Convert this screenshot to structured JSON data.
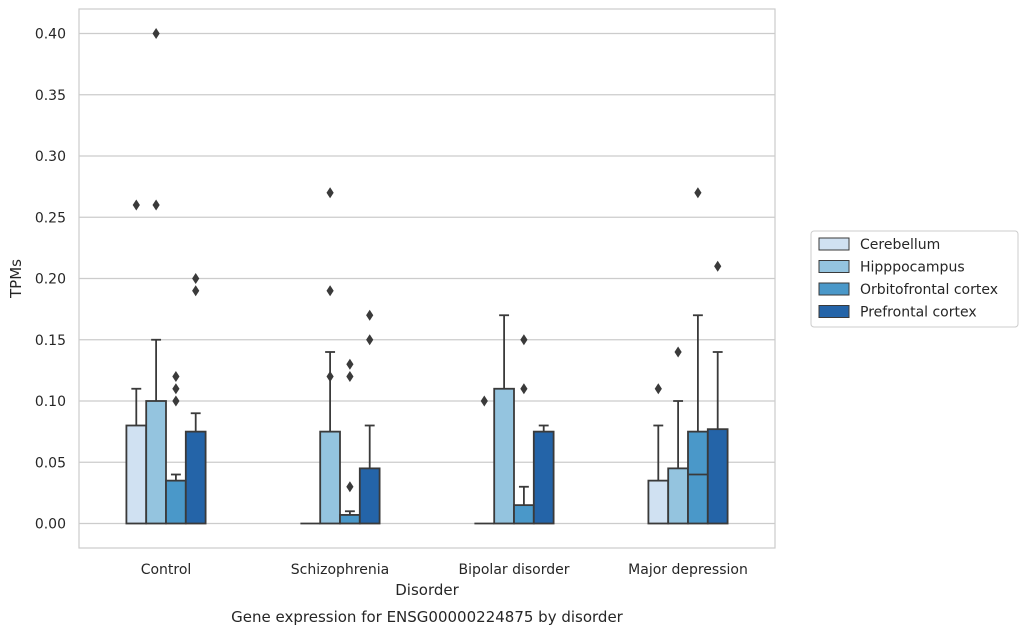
{
  "chart_data": {
    "type": "bar",
    "title": "",
    "xlabel": "Disorder",
    "ylabel": "TPMs",
    "caption": "Gene expression for ENSG00000224875 by disorder",
    "ylim": [
      -0.02,
      0.42
    ],
    "yticks": [
      "0.00",
      "0.05",
      "0.10",
      "0.15",
      "0.20",
      "0.25",
      "0.30",
      "0.35",
      "0.40"
    ],
    "grid": "horizontal",
    "legend_position": "right",
    "categories": [
      "Control",
      "Schizophrenia",
      "Bipolar disorder",
      "Major depression"
    ],
    "series": [
      {
        "name": "Cerebellum",
        "color": "#d0e1f2",
        "values": [
          0.08,
          0.0,
          0.0,
          0.035
        ],
        "whisker_high": [
          0.11,
          0.0,
          0.0,
          0.08
        ],
        "median_line": [
          null,
          null,
          null,
          null
        ],
        "outliers": [
          [
            0.26
          ],
          [],
          [
            0.1
          ],
          [
            0.11
          ]
        ]
      },
      {
        "name": "Hipppocampus",
        "color": "#94c4df",
        "values": [
          0.1,
          0.075,
          0.11,
          0.045
        ],
        "whisker_high": [
          0.15,
          0.14,
          0.17,
          0.1
        ],
        "median_line": [
          null,
          null,
          null,
          null
        ],
        "outliers": [
          [
            0.26,
            0.4
          ],
          [
            0.12,
            0.19,
            0.27
          ],
          [],
          [
            0.14
          ]
        ]
      },
      {
        "name": "Orbitofrontal cortex",
        "color": "#4a98c9",
        "values": [
          0.035,
          0.007,
          0.015,
          0.075
        ],
        "whisker_high": [
          0.04,
          0.01,
          0.03,
          0.17
        ],
        "median_line": [
          null,
          null,
          null,
          0.04
        ],
        "outliers": [
          [
            0.1,
            0.11,
            0.12
          ],
          [
            0.03,
            0.12,
            0.13
          ],
          [
            0.11,
            0.15
          ],
          [
            0.27
          ]
        ]
      },
      {
        "name": "Prefrontal cortex",
        "color": "#2464a8",
        "values": [
          0.075,
          0.045,
          0.075,
          0.077
        ],
        "whisker_high": [
          0.09,
          0.08,
          0.08,
          0.14
        ],
        "median_line": [
          null,
          null,
          null,
          null
        ],
        "outliers": [
          [
            0.19,
            0.2
          ],
          [
            0.15,
            0.17
          ],
          [],
          [
            0.21
          ]
        ]
      }
    ]
  }
}
